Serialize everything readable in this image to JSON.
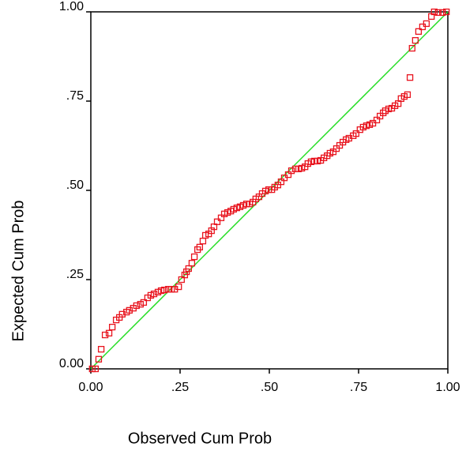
{
  "chart_data": {
    "type": "scatter",
    "x_label": "Observed Cum Prob",
    "y_label": "Expected Cum Prob",
    "xlim": [
      0,
      1
    ],
    "ylim": [
      0,
      1
    ],
    "xticks": [
      {
        "value": 0,
        "label": "0.00"
      },
      {
        "value": 0.25,
        "label": ".25"
      },
      {
        "value": 0.5,
        "label": ".50"
      },
      {
        "value": 0.75,
        "label": ".75"
      },
      {
        "value": 1,
        "label": "1.00"
      }
    ],
    "yticks": [
      {
        "value": 0,
        "label": "0.00"
      },
      {
        "value": 0.25,
        "label": ".25"
      },
      {
        "value": 0.5,
        "label": ".50"
      },
      {
        "value": 0.75,
        "label": ".75"
      },
      {
        "value": 1,
        "label": "1.00"
      }
    ],
    "color": "#e8141e",
    "reference_line_color": "#22dd22",
    "x": [
      0.004,
      0.013,
      0.022,
      0.029,
      0.04,
      0.051,
      0.06,
      0.071,
      0.08,
      0.088,
      0.1,
      0.108,
      0.119,
      0.128,
      0.139,
      0.148,
      0.159,
      0.168,
      0.177,
      0.188,
      0.197,
      0.206,
      0.217,
      0.226,
      0.235,
      0.246,
      0.254,
      0.263,
      0.268,
      0.274,
      0.283,
      0.29,
      0.299,
      0.305,
      0.314,
      0.321,
      0.33,
      0.338,
      0.345,
      0.354,
      0.365,
      0.374,
      0.383,
      0.392,
      0.4,
      0.409,
      0.418,
      0.427,
      0.436,
      0.445,
      0.454,
      0.462,
      0.471,
      0.48,
      0.489,
      0.498,
      0.507,
      0.515,
      0.524,
      0.533,
      0.542,
      0.553,
      0.562,
      0.573,
      0.582,
      0.591,
      0.6,
      0.608,
      0.617,
      0.626,
      0.635,
      0.644,
      0.653,
      0.662,
      0.67,
      0.679,
      0.688,
      0.697,
      0.706,
      0.715,
      0.723,
      0.735,
      0.743,
      0.754,
      0.763,
      0.772,
      0.781,
      0.79,
      0.801,
      0.81,
      0.819,
      0.825,
      0.834,
      0.843,
      0.852,
      0.861,
      0.869,
      0.878,
      0.887,
      0.894,
      0.9,
      0.909,
      0.918,
      0.929,
      0.94,
      0.954,
      0.962,
      0.973,
      0.985,
      0.996
    ],
    "values": [
      0,
      0,
      0.027,
      0.055,
      0.095,
      0.1,
      0.117,
      0.137,
      0.144,
      0.153,
      0.159,
      0.164,
      0.17,
      0.177,
      0.181,
      0.186,
      0.199,
      0.206,
      0.21,
      0.215,
      0.219,
      0.221,
      0.223,
      0.223,
      0.223,
      0.23,
      0.25,
      0.263,
      0.272,
      0.281,
      0.296,
      0.314,
      0.334,
      0.341,
      0.358,
      0.374,
      0.378,
      0.387,
      0.398,
      0.412,
      0.423,
      0.434,
      0.438,
      0.442,
      0.447,
      0.451,
      0.454,
      0.458,
      0.462,
      0.462,
      0.467,
      0.476,
      0.482,
      0.491,
      0.498,
      0.502,
      0.502,
      0.509,
      0.515,
      0.524,
      0.535,
      0.544,
      0.555,
      0.56,
      0.56,
      0.562,
      0.566,
      0.575,
      0.58,
      0.582,
      0.582,
      0.584,
      0.591,
      0.597,
      0.604,
      0.608,
      0.617,
      0.626,
      0.635,
      0.642,
      0.646,
      0.653,
      0.659,
      0.67,
      0.677,
      0.681,
      0.684,
      0.688,
      0.697,
      0.708,
      0.717,
      0.723,
      0.728,
      0.73,
      0.737,
      0.743,
      0.757,
      0.763,
      0.768,
      0.816,
      0.898,
      0.92,
      0.945,
      0.958,
      0.967,
      0.987,
      1.0,
      0.998,
      0.998,
      1.0
    ]
  }
}
